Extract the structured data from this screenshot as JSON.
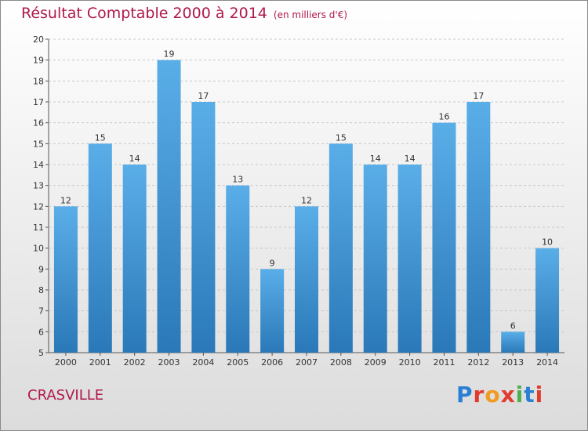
{
  "header": {
    "title": "Résultat Comptable 2000 à 2014",
    "subtitle": "(en milliers d'€)"
  },
  "footer": {
    "commune": "CRASVILLE",
    "logo": "Proxiti",
    "logo_colors": [
      "#2a7fd4",
      "#e23b2e",
      "#f29a1f",
      "#e23b2e",
      "#4caf50",
      "#2a7fd4",
      "#e23b2e"
    ]
  },
  "chart_data": {
    "type": "bar",
    "title": "Résultat Comptable 2000 à 2014",
    "subtitle": "(en milliers d'€)",
    "categories": [
      "2000",
      "2001",
      "2002",
      "2003",
      "2004",
      "2005",
      "2006",
      "2007",
      "2008",
      "2009",
      "2010",
      "2011",
      "2012",
      "2013",
      "2014"
    ],
    "values": [
      12,
      15,
      14,
      19,
      17,
      13,
      9,
      12,
      15,
      14,
      14,
      16,
      17,
      6,
      10
    ],
    "ylim": [
      5,
      20
    ],
    "yticks": [
      5,
      6,
      7,
      8,
      9,
      10,
      11,
      12,
      13,
      14,
      15,
      16,
      17,
      18,
      19,
      20
    ],
    "grid": true,
    "bar_color_top": "#5aaee8",
    "bar_color_bottom": "#2a78b8"
  }
}
